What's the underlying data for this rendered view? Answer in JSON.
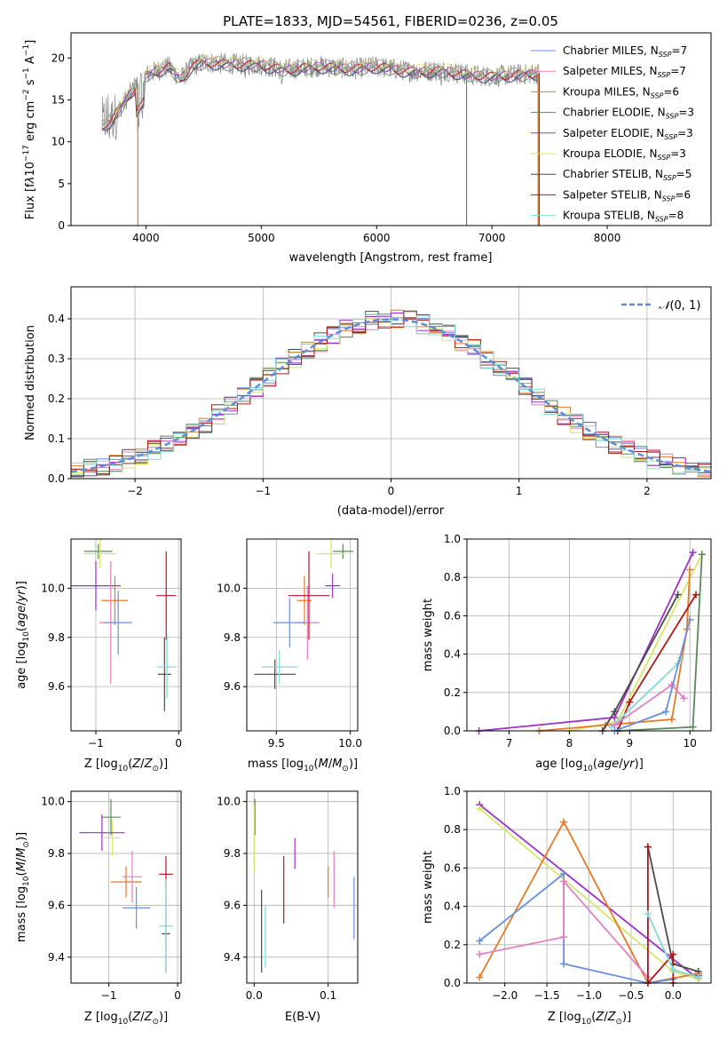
{
  "colors": {
    "chabrier_miles": "#6a8fdb",
    "salpeter_miles": "#e07fc4",
    "kroupa_miles": "#e57a25",
    "chabrier_elodie": "#5a8a5a",
    "salpeter_elodie": "#9b30c8",
    "kroupa_elodie": "#d7e56a",
    "chabrier_stelib": "#4a4a4a",
    "salpeter_stelib": "#b01818",
    "kroupa_stelib": "#86d8dc",
    "data": "#888888",
    "normal": "#5b8ddb",
    "grid": "#b0b0b0"
  },
  "chart_data": [
    {
      "id": "spectrum",
      "type": "line",
      "title": "PLATE=1833, MJD=54561, FIBERID=0236, z=0.05",
      "xlabel": "wavelength [Angstrom, rest frame]",
      "ylabel": "Flux [fλ10⁻¹⁷ erg cm⁻² s⁻¹ A⁻¹]",
      "xlim": [
        3350,
        8900
      ],
      "ylim": [
        0,
        23
      ],
      "xticks": [
        4000,
        5000,
        6000,
        7000,
        8000
      ],
      "yticks": [
        0,
        5,
        10,
        15,
        20
      ],
      "grid": false,
      "legend": "top-right",
      "legend_entries": [
        {
          "label": "Chabrier MILES, N",
          "sub": "SSP",
          "tail": "=7",
          "color": "chabrier_miles"
        },
        {
          "label": "Salpeter MILES, N",
          "sub": "SSP",
          "tail": "=7",
          "color": "salpeter_miles"
        },
        {
          "label": "Kroupa MILES, N",
          "sub": "SSP",
          "tail": "=6",
          "color": "kroupa_miles"
        },
        {
          "label": "Chabrier ELODIE, N",
          "sub": "SSP",
          "tail": "=3",
          "color": "chabrier_elodie"
        },
        {
          "label": "Salpeter ELODIE, N",
          "sub": "SSP",
          "tail": "=3",
          "color": "salpeter_elodie"
        },
        {
          "label": "Kroupa ELODIE, N",
          "sub": "SSP",
          "tail": "=3",
          "color": "kroupa_elodie"
        },
        {
          "label": "Chabrier STELIB, N",
          "sub": "SSP",
          "tail": "=5",
          "color": "chabrier_stelib"
        },
        {
          "label": "Salpeter STELIB, N",
          "sub": "SSP",
          "tail": "=6",
          "color": "salpeter_stelib"
        },
        {
          "label": "Kroupa STELIB, N",
          "sub": "SSP",
          "tail": "=8",
          "color": "kroupa_stelib"
        }
      ],
      "continuum": [
        [
          3620,
          12
        ],
        [
          3700,
          12.5
        ],
        [
          3800,
          14.5
        ],
        [
          3900,
          16.5
        ],
        [
          4000,
          18
        ],
        [
          4100,
          18.5
        ],
        [
          4200,
          19
        ],
        [
          4300,
          17.5
        ],
        [
          4400,
          19
        ],
        [
          4500,
          19.5
        ],
        [
          4700,
          19.3
        ],
        [
          5000,
          19.2
        ],
        [
          5200,
          18.6
        ],
        [
          5500,
          19
        ],
        [
          5800,
          18.7
        ],
        [
          6000,
          19
        ],
        [
          6300,
          18.4
        ],
        [
          6600,
          18.5
        ],
        [
          6800,
          18
        ],
        [
          7000,
          17.8
        ],
        [
          7200,
          18
        ],
        [
          7400,
          18.2
        ]
      ],
      "model_cutoffs": [
        {
          "color": "kroupa_miles",
          "x": 3930
        },
        {
          "color": "chabrier_elodie",
          "x": 6780
        },
        {
          "color": "salpeter_stelib",
          "x": 7410
        },
        {
          "color": "kroupa_miles",
          "x": 7400
        }
      ]
    },
    {
      "id": "residuals",
      "type": "line",
      "xlabel": "(data-model)/error",
      "ylabel": "Normed distribution",
      "xlim": [
        -2.5,
        2.5
      ],
      "ylim": [
        0,
        0.48
      ],
      "xticks": [
        -2,
        -1,
        0,
        1,
        2
      ],
      "yticks": [
        0.0,
        0.1,
        0.2,
        0.3,
        0.4
      ],
      "grid": true,
      "legend": "top-right",
      "legend_label": "𝒩(0, 1)",
      "normal": {
        "mu": 0,
        "sigma": 1
      }
    },
    {
      "id": "age-vs-Z",
      "type": "scatter",
      "xlabel": "Z [log₁₀(Z/Z⊙)]",
      "ylabel": "age  [log₁₀(age/yr)]",
      "xlim": [
        -1.3,
        0.03
      ],
      "ylim": [
        9.42,
        10.2
      ],
      "xticks": [
        -1,
        0
      ],
      "yticks": [
        9.6,
        9.8,
        10.0
      ],
      "grid": true,
      "points": [
        {
          "color": "chabrier_elodie",
          "x": -0.97,
          "xerr": 0.17,
          "y": 10.15,
          "yerr": 0.03
        },
        {
          "color": "kroupa_elodie",
          "x": -0.95,
          "xerr": 0.2,
          "y": 10.14,
          "yerr": 0.06
        },
        {
          "color": "salpeter_elodie",
          "x": -1.0,
          "xerr": 0.3,
          "y": 10.01,
          "yerr": 0.1
        },
        {
          "color": "kroupa_miles",
          "x": -0.77,
          "xerr": 0.16,
          "y": 9.95,
          "yerr": 0.1
        },
        {
          "color": "salpeter_miles",
          "x": -0.82,
          "xerr": 0.14,
          "y": 9.86,
          "yerr": 0.25
        },
        {
          "color": "chabrier_miles",
          "x": -0.73,
          "xerr": 0.17,
          "y": 9.86,
          "yerr": 0.13
        },
        {
          "color": "salpeter_stelib",
          "x": -0.15,
          "xerr": 0.12,
          "y": 9.97,
          "yerr": 0.18
        },
        {
          "color": "chabrier_stelib",
          "x": -0.17,
          "xerr": 0.08,
          "y": 9.65,
          "yerr": 0.15
        },
        {
          "color": "kroupa_stelib",
          "x": -0.14,
          "xerr": 0.12,
          "y": 9.68,
          "yerr": 0.13
        }
      ]
    },
    {
      "id": "age-vs-mass",
      "type": "scatter",
      "xlabel": "mass [log₁₀(M/M⊙)]",
      "ylabel": "",
      "xlim": [
        9.3,
        10.05
      ],
      "ylim": [
        9.42,
        10.2
      ],
      "xticks": [
        9.5,
        10.0
      ],
      "yticks": [
        9.6,
        9.8,
        10.0
      ],
      "grid": true,
      "points": [
        {
          "color": "chabrier_elodie",
          "x": 9.95,
          "xerr": 0.07,
          "y": 10.15,
          "yerr": 0.03
        },
        {
          "color": "kroupa_elodie",
          "x": 9.87,
          "xerr": 0.1,
          "y": 10.14,
          "yerr": 0.06
        },
        {
          "color": "salpeter_elodie",
          "x": 9.88,
          "xerr": 0.05,
          "y": 10.01,
          "yerr": 0.05
        },
        {
          "color": "kroupa_miles",
          "x": 9.69,
          "xerr": 0.05,
          "y": 9.95,
          "yerr": 0.1
        },
        {
          "color": "salpeter_miles",
          "x": 9.71,
          "xerr": 0.08,
          "y": 9.86,
          "yerr": 0.15
        },
        {
          "color": "chabrier_miles",
          "x": 9.59,
          "xerr": 0.11,
          "y": 9.86,
          "yerr": 0.1
        },
        {
          "color": "salpeter_stelib",
          "x": 9.72,
          "xerr": 0.14,
          "y": 9.97,
          "yerr": 0.18
        },
        {
          "color": "chabrier_stelib",
          "x": 9.49,
          "xerr": 0.14,
          "y": 9.65,
          "yerr": 0.06
        },
        {
          "color": "kroupa_stelib",
          "x": 9.52,
          "xerr": 0.12,
          "y": 9.68,
          "yerr": 0.07
        }
      ]
    },
    {
      "id": "weight-vs-age",
      "type": "line",
      "xlabel": "age  [log₁₀(age/yr)]",
      "ylabel": "mass weight",
      "xlim": [
        6.3,
        10.35
      ],
      "ylim": [
        0,
        1
      ],
      "xticks": [
        7,
        8,
        9,
        10
      ],
      "yticks": [
        0.0,
        0.2,
        0.4,
        0.6,
        0.8,
        1.0
      ],
      "grid": true,
      "series": [
        {
          "color": "salpeter_elodie",
          "points": [
            [
              6.5,
              0.0
            ],
            [
              8.75,
              0.07
            ],
            [
              10.05,
              0.93
            ]
          ]
        },
        {
          "color": "kroupa_elodie",
          "points": [
            [
              8.0,
              0.0
            ],
            [
              8.8,
              0.05
            ],
            [
              10.2,
              0.92
            ]
          ]
        },
        {
          "color": "chabrier_elodie",
          "points": [
            [
              8.8,
              0.0
            ],
            [
              10.05,
              0.02
            ],
            [
              10.2,
              0.92
            ]
          ]
        },
        {
          "color": "kroupa_miles",
          "points": [
            [
              7.5,
              0.0
            ],
            [
              8.6,
              0.03
            ],
            [
              9.7,
              0.06
            ],
            [
              9.95,
              0.53
            ],
            [
              10.0,
              0.84
            ]
          ]
        },
        {
          "color": "chabrier_stelib",
          "points": [
            [
              8.55,
              0.0
            ],
            [
              8.75,
              0.1
            ],
            [
              9.8,
              0.71
            ]
          ]
        },
        {
          "color": "salpeter_stelib",
          "points": [
            [
              8.8,
              0.0
            ],
            [
              9.0,
              0.15
            ],
            [
              10.1,
              0.71
            ]
          ]
        },
        {
          "color": "kroupa_stelib",
          "points": [
            [
              8.7,
              0.02
            ],
            [
              9.8,
              0.35
            ],
            [
              9.85,
              0.38
            ]
          ]
        },
        {
          "color": "salpeter_miles",
          "points": [
            [
              8.75,
              0.03
            ],
            [
              9.7,
              0.24
            ],
            [
              9.9,
              0.17
            ]
          ]
        },
        {
          "color": "chabrier_miles",
          "points": [
            [
              8.75,
              0.0
            ],
            [
              9.6,
              0.1
            ],
            [
              10.0,
              0.58
            ]
          ]
        }
      ]
    },
    {
      "id": "mass-vs-Z",
      "type": "scatter",
      "xlabel": "Z [log₁₀(Z/Z⊙)]",
      "ylabel": "mass [log₁₀(M/M⊙)]",
      "xlim": [
        -1.55,
        0.05
      ],
      "ylim": [
        9.3,
        10.04
      ],
      "xticks": [
        -1,
        0
      ],
      "yticks": [
        9.4,
        9.6,
        9.8,
        10.0
      ],
      "grid": true,
      "points": [
        {
          "color": "chabrier_elodie",
          "x": -0.97,
          "xerr": 0.14,
          "y": 9.94,
          "yerr": 0.07
        },
        {
          "color": "kroupa_elodie",
          "x": -0.95,
          "xerr": 0.12,
          "y": 9.86,
          "yerr": 0.07
        },
        {
          "color": "salpeter_elodie",
          "x": -1.1,
          "xerr": 0.33,
          "y": 9.88,
          "yerr": 0.07
        },
        {
          "color": "kroupa_miles",
          "x": -0.75,
          "xerr": 0.22,
          "y": 9.69,
          "yerr": 0.06
        },
        {
          "color": "salpeter_miles",
          "x": -0.66,
          "xerr": 0.14,
          "y": 9.71,
          "yerr": 0.1
        },
        {
          "color": "chabrier_miles",
          "x": -0.6,
          "xerr": 0.2,
          "y": 9.59,
          "yerr": 0.08
        },
        {
          "color": "salpeter_stelib",
          "x": -0.17,
          "xerr": 0.1,
          "y": 9.72,
          "yerr": 0.07
        },
        {
          "color": "chabrier_stelib",
          "x": -0.17,
          "xerr": 0.06,
          "y": 9.49,
          "yerr": 0.15
        },
        {
          "color": "kroupa_stelib",
          "x": -0.17,
          "xerr": 0.1,
          "y": 9.52,
          "yerr": 0.18
        }
      ]
    },
    {
      "id": "mass-vs-ebv",
      "type": "scatter",
      "xlabel": "E(B-V)",
      "ylabel": "",
      "xlim": [
        -0.01,
        0.14
      ],
      "ylim": [
        9.3,
        10.04
      ],
      "xticks": [
        0.0,
        0.1
      ],
      "yticks": [
        9.4,
        9.6,
        9.8,
        10.0
      ],
      "grid": true,
      "points": [
        {
          "color": "chabrier_elodie",
          "x": 0.001,
          "xerr": 0,
          "y": 9.94,
          "yerr": 0.07
        },
        {
          "color": "kroupa_elodie",
          "x": 0.0,
          "xerr": 0,
          "y": 9.86,
          "yerr": 0.13
        },
        {
          "color": "salpeter_elodie",
          "x": 0.055,
          "xerr": 0,
          "y": 9.8,
          "yerr": 0.06
        },
        {
          "color": "kroupa_miles",
          "x": 0.1,
          "xerr": 0,
          "y": 9.69,
          "yerr": 0.06
        },
        {
          "color": "salpeter_miles",
          "x": 0.108,
          "xerr": 0,
          "y": 9.7,
          "yerr": 0.11
        },
        {
          "color": "chabrier_miles",
          "x": 0.135,
          "xerr": 0,
          "y": 9.59,
          "yerr": 0.12
        },
        {
          "color": "salpeter_stelib",
          "x": 0.04,
          "xerr": 0,
          "y": 9.66,
          "yerr": 0.13
        },
        {
          "color": "chabrier_stelib",
          "x": 0.01,
          "xerr": 0,
          "y": 9.5,
          "yerr": 0.16
        },
        {
          "color": "kroupa_stelib",
          "x": 0.015,
          "xerr": 0,
          "y": 9.48,
          "yerr": 0.12
        }
      ]
    },
    {
      "id": "weight-vs-Z",
      "type": "line",
      "xlabel": "Z [log₁₀(Z/Z⊙)]",
      "ylabel": "mass weight",
      "xlim": [
        -2.45,
        0.45
      ],
      "ylim": [
        0,
        1
      ],
      "xticks": [
        -2.0,
        -1.5,
        -1.0,
        -0.5,
        0.0
      ],
      "yticks": [
        0.0,
        0.2,
        0.4,
        0.6,
        0.8,
        1.0
      ],
      "grid": true,
      "series": [
        {
          "color": "salpeter_elodie",
          "points": [
            [
              -2.3,
              0.93
            ],
            [
              0.3,
              0.02
            ],
            [
              0.3,
              0.04
            ]
          ]
        },
        {
          "color": "kroupa_elodie",
          "points": [
            [
              -2.3,
              0.91
            ],
            [
              0.0,
              0.06
            ],
            [
              0.3,
              0.02
            ]
          ]
        },
        {
          "color": "kroupa_miles",
          "points": [
            [
              -2.3,
              0.03
            ],
            [
              -1.3,
              0.84
            ],
            [
              -0.3,
              0.0
            ],
            [
              0.3,
              0.05
            ]
          ]
        },
        {
          "color": "chabrier_miles",
          "points": [
            [
              -2.3,
              0.22
            ],
            [
              -1.3,
              0.57
            ],
            [
              -1.3,
              0.1
            ],
            [
              -0.3,
              0.0
            ],
            [
              0.0,
              0.02
            ]
          ]
        },
        {
          "color": "salpeter_miles",
          "points": [
            [
              -2.3,
              0.15
            ],
            [
              -1.3,
              0.24
            ],
            [
              -1.3,
              0.53
            ],
            [
              -0.3,
              0.03
            ]
          ]
        },
        {
          "color": "chabrier_stelib",
          "points": [
            [
              -0.3,
              0.71
            ],
            [
              0.0,
              0.1
            ],
            [
              0.3,
              0.06
            ]
          ]
        },
        {
          "color": "salpeter_stelib",
          "points": [
            [
              -0.3,
              0.71
            ],
            [
              -0.3,
              0.0
            ],
            [
              0.0,
              0.15
            ],
            [
              0.0,
              0.0
            ]
          ]
        },
        {
          "color": "kroupa_stelib",
          "points": [
            [
              -0.3,
              0.36
            ],
            [
              0.0,
              0.07
            ],
            [
              0.3,
              0.03
            ]
          ]
        }
      ]
    }
  ]
}
